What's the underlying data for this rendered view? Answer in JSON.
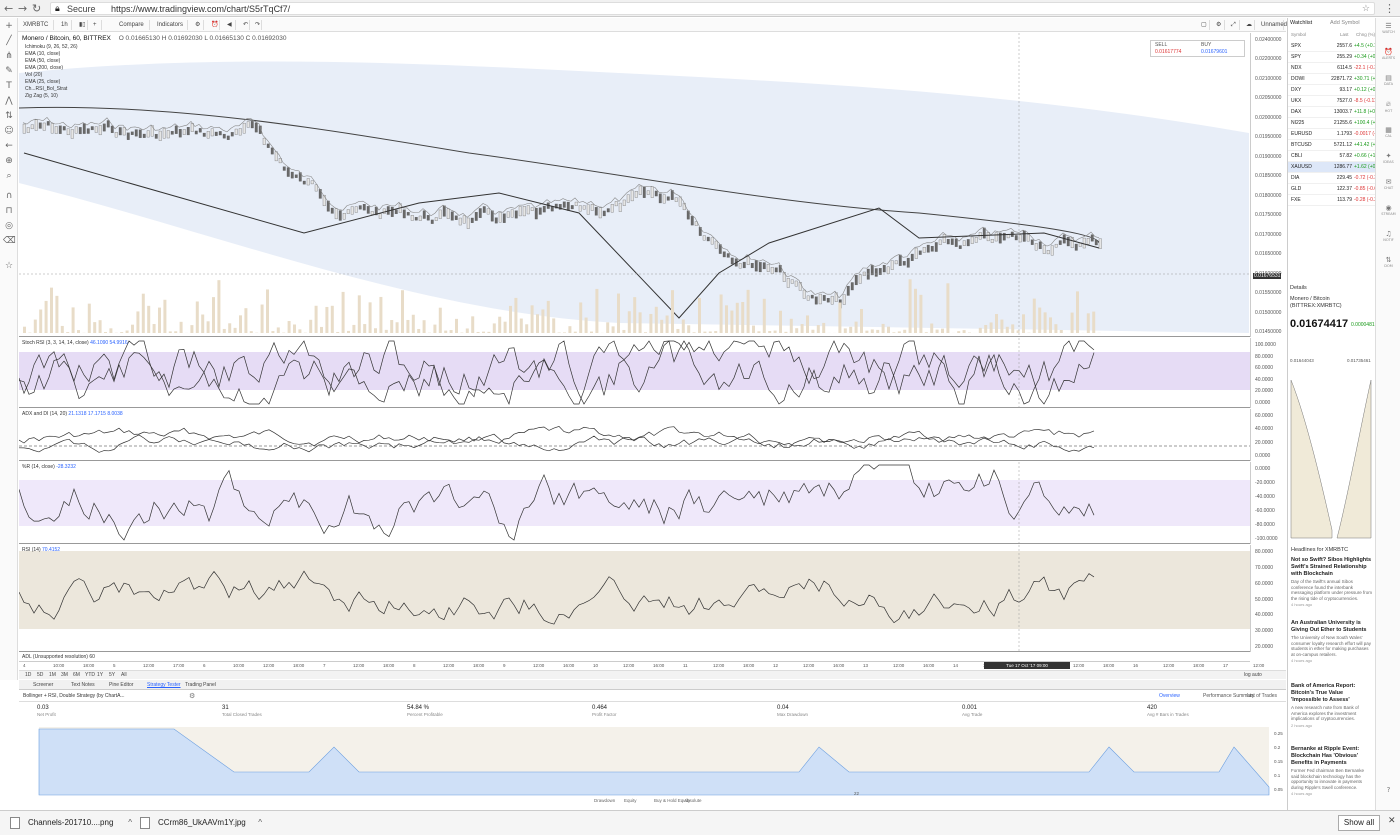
{
  "browser": {
    "secure_label": "Secure",
    "url": "https://www.tradingview.com/chart/S5rTqCf7/"
  },
  "toolbar": {
    "symbol": "XMRBTC",
    "interval": "1h",
    "compare": "Compare",
    "indicators": "Indicators",
    "unnamed": "Unnamed"
  },
  "chart": {
    "title": "Monero / Bitcoin, 60, BITTREX",
    "ohlc": "O 0.01665130  H 0.01692030  L 0.01665130  C 0.01692030",
    "indicators": [
      "Ichimoku (9, 26, 52, 26)",
      "EMA (10, close)",
      "EMA (50, close)",
      "EMA (200, close)",
      "Vol (20)",
      "EMA (25, close)",
      "Ch...RSI_Bol_Strat",
      "Zig Zag (5, 10)"
    ],
    "sell_label": "SELL",
    "sell_price": "0.01617774",
    "buy_label": "BUY",
    "buy_price": "0.01679601",
    "price_ticks": [
      "0.02400000",
      "0.02200000",
      "0.02100000",
      "0.02050000",
      "0.02000000",
      "0.01950000",
      "0.01900000",
      "0.01850000",
      "0.01800000",
      "0.01750000",
      "0.01700000",
      "0.01650000",
      "0.01600000",
      "0.01550000",
      "0.01500000",
      "0.01450000"
    ],
    "current_price_tag": "0.01676531",
    "stoch_title": "Stoch RSI (3, 3, 14, 14, close)",
    "stoch_values": "46.1090  54.9916",
    "stoch_ticks": [
      "100.0000",
      "80.0000",
      "60.0000",
      "40.0000",
      "20.0000",
      "0.0000"
    ],
    "adx_title": "ADX and DI (14, 20)",
    "adx_values": "21.1318  17.1715  8.0038",
    "adx_ticks": [
      "60.0000",
      "40.0000",
      "20.0000",
      "0.0000"
    ],
    "wr_title": "%R (14, close)",
    "wr_value": "-28.3232",
    "wr_ticks": [
      "0.0000",
      "-20.0000",
      "-40.0000",
      "-60.0000",
      "-80.0000",
      "-100.0000"
    ],
    "rsi_title": "RSI (14)",
    "rsi_value": "70.4152",
    "rsi_ticks": [
      "80.0000",
      "70.0000",
      "60.0000",
      "50.0000",
      "40.0000",
      "30.0000",
      "20.0000"
    ],
    "last_pane_title": "ADL (Unsupported resolution) 60",
    "time_ticks": [
      "4",
      "10:00",
      "18:00",
      "5",
      "12:00",
      "17:00",
      "6",
      "10:00",
      "12:00",
      "18:00",
      "7",
      "12:00",
      "18:00",
      "8",
      "12:00",
      "18:00",
      "9",
      "12:00",
      "16:00",
      "10",
      "12:00",
      "16:00",
      "11",
      "12:00",
      "18:00",
      "12",
      "12:00",
      "16:00",
      "13",
      "12:00",
      "16:00",
      "14",
      "12:00",
      "18:00",
      "15",
      "12:00",
      "18:00",
      "16",
      "12:00",
      "18:00",
      "17",
      "12:00"
    ],
    "crosshair_time": "Tue 17 Oct '17  09:00",
    "range_buttons": [
      "1D",
      "5D",
      "1M",
      "3M",
      "6M",
      "YTD",
      "1Y",
      "5Y",
      "All"
    ],
    "range_right": "log  auto"
  },
  "bottom_panel": {
    "tabs": [
      "Screener",
      "Text Notes",
      "Pine Editor",
      "Strategy Tester",
      "Trading Panel"
    ],
    "strategy_name": "Bollinger + RSI, Double Strategy (by ChartA...",
    "views": [
      "Overview",
      "Performance Summary",
      "List of Trades"
    ],
    "stats": [
      {
        "value": "0.03",
        "label": "Net Profit"
      },
      {
        "value": "31",
        "label": "Total Closed Trades"
      },
      {
        "value": "54.84 %",
        "label": "Percent Profitable"
      },
      {
        "value": "0.464",
        "label": "Profit Factor"
      },
      {
        "value": "0.04",
        "label": "Max Drawdown"
      },
      {
        "value": "0.001",
        "label": "Avg Trade"
      },
      {
        "value": "420",
        "label": "Avg # Bars in Trades"
      }
    ],
    "equity_ticks": [
      "0.25",
      "0.2",
      "0.15",
      "0.1",
      "0.05"
    ],
    "equity_x_label": "22",
    "legend": [
      "Drawdown",
      "Equity",
      "Buy & Hold Equity",
      "Absolute"
    ]
  },
  "watchlist": {
    "title": "Watchlist",
    "add_symbol": "Add Symbol",
    "columns": [
      "Symbol",
      "Last",
      "Chng (%)"
    ],
    "rows": [
      {
        "sym": "SPX",
        "last": "2557.6",
        "chg": "+4.5 (+0.18%)",
        "neg": false
      },
      {
        "sym": "SPY",
        "last": "255.29",
        "chg": "+0.34 (+0.13%)",
        "neg": false
      },
      {
        "sym": "NDX",
        "last": "6114.5",
        "chg": "-22.1 (-0.36%)",
        "neg": true
      },
      {
        "sym": "DOWI",
        "last": "22871.72",
        "chg": "+30.71 (+0.13%)",
        "neg": false
      },
      {
        "sym": "DXY",
        "last": "93.17",
        "chg": "+0.12 (+0.13%)",
        "neg": false
      },
      {
        "sym": "UKX",
        "last": "7527.0",
        "chg": "-8.5 (-0.11%)",
        "neg": true
      },
      {
        "sym": "DAX",
        "last": "13003.7",
        "chg": "+11.8 (+0.09%)",
        "neg": false
      },
      {
        "sym": "NI225",
        "last": "21255.6",
        "chg": "+100.4 (+0.47%)",
        "neg": false
      },
      {
        "sym": "EURUSD",
        "last": "1.1793",
        "chg": "-0.0017 (-0.15%)",
        "neg": true
      },
      {
        "sym": "BTCUSD",
        "last": "5721.12",
        "chg": "+41.42 (+0.73%)",
        "neg": false
      },
      {
        "sym": "CBLI",
        "last": "57.82",
        "chg": "+0.66 (+1.14%)",
        "neg": false
      },
      {
        "sym": "XAUUSD",
        "last": "1286.77",
        "chg": "+1.62 (+0.08%)",
        "neg": false
      },
      {
        "sym": "DIA",
        "last": "229.45",
        "chg": "-0.72 (-0.31%)",
        "neg": true
      },
      {
        "sym": "GLD",
        "last": "122.37",
        "chg": "-0.85 (-0.69%)",
        "neg": true
      },
      {
        "sym": "FXE",
        "last": "113.79",
        "chg": "-0.28 (-0.25%)",
        "neg": true
      }
    ],
    "selected_index": 11
  },
  "details": {
    "title": "Details",
    "name": "Monero / Bitcoin (BITTREX:XMRBTC)",
    "price": "0.01674417",
    "change": "0.0000481",
    "low": "0.01644043",
    "high": "0.01735461"
  },
  "headlines": {
    "title": "Headlines for XMRBTC",
    "items": [
      {
        "title": "Not so Swift? Sibos Highlights Swift's Strained Relationship with Blockchain",
        "body": "Day of the Swift's annual Sibos conference found the interbank messaging platform under pressure from the rising tide of cryptocurrencies.",
        "meta": "4 hours ago"
      },
      {
        "title": "An Australian University is Giving Out Ether to Students",
        "body": "The University of New South Wales' consumer loyalty research effort will pay students in ether for making purchases at on-campus retailers.",
        "meta": "4 hours ago"
      },
      {
        "title": "Bank of America Report: Bitcoin's True Value 'Impossible to Assess'",
        "body": "A new research note from Bank of America explores the investment implications of cryptocurrencies.",
        "meta": "2 hours ago"
      },
      {
        "title": "Bernanke at Ripple Event: Blockchain Has 'Obvious' Benefits in Payments",
        "body": "Former Fed chairman Ben Bernanke said blockchain technology has the opportunity to innovate in payments during Ripple's Swell conference.",
        "meta": "4 hours ago"
      }
    ]
  },
  "downloads": [
    {
      "name": "Channels-201710....png"
    },
    {
      "name": "CCrm86_UkAAVm1Y.jpg"
    }
  ],
  "show_all": "Show all",
  "colors": {
    "accent": "#2196f3",
    "cloud": "#e8eef8",
    "stoch_band": "#e6dcf5",
    "rsi_band": "#ece7dc",
    "equity": "#cfe0f7"
  }
}
